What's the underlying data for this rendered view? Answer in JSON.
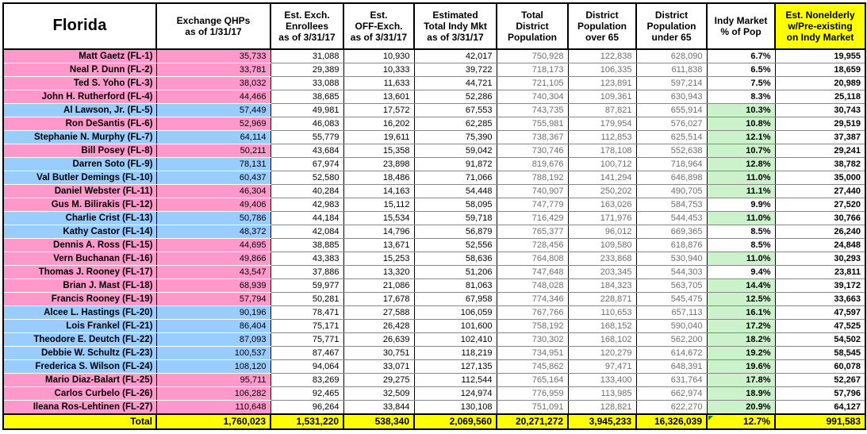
{
  "colors": {
    "republican_row": "#FF99CC",
    "democrat_row": "#99CCFF",
    "pct_highlight": "#CCF2CC",
    "total_row": "#FFFF00",
    "header_highlight": "#FFFF00",
    "flag_triangle": "#0a8a0a",
    "population_text": "#6e6e6e"
  },
  "table": {
    "columns": [
      {
        "key": "name",
        "lines": [
          "Florida"
        ]
      },
      {
        "key": "qhp",
        "lines": [
          "Exchange QHPs",
          "as of 1/31/17"
        ]
      },
      {
        "key": "enrollees",
        "lines": [
          "Est. Exch.",
          "Enrollees",
          "as of 3/31/17"
        ]
      },
      {
        "key": "off_exch",
        "lines": [
          "Est.",
          "OFF-Exch.",
          "as of 3/31/17"
        ]
      },
      {
        "key": "total_indy",
        "lines": [
          "Estimated",
          "Total Indy Mkt",
          "as of 3/31/17"
        ]
      },
      {
        "key": "total_pop",
        "lines": [
          "Total",
          "District",
          "Population"
        ]
      },
      {
        "key": "pop_over_65",
        "lines": [
          "District",
          "Population",
          "over 65"
        ]
      },
      {
        "key": "pop_under_65",
        "lines": [
          "District",
          "Population",
          "under 65"
        ]
      },
      {
        "key": "indy_pct",
        "lines": [
          "Indy Market",
          "% of Pop"
        ]
      },
      {
        "key": "nonelderly",
        "lines": [
          "Est. Nonelderly",
          "w/Pre-existing",
          "on Indy Market"
        ],
        "highlight": true
      }
    ],
    "rows": [
      {
        "district": "FL-1",
        "label": "Matt Gaetz (FL-1)",
        "party": "R",
        "qhp": "35,733",
        "enrollees": "31,088",
        "off_exch": "10,930",
        "total_indy": "42,017",
        "total_pop": "750,928",
        "pop_over_65": "122,838",
        "pop_under_65": "628,090",
        "indy_pct": "6.7%",
        "nonelderly": "19,955"
      },
      {
        "district": "FL-2",
        "label": "Neal P. Dunn (FL-2)",
        "party": "R",
        "qhp": "33,781",
        "enrollees": "29,389",
        "off_exch": "10,333",
        "total_indy": "39,722",
        "total_pop": "718,173",
        "pop_over_65": "106,335",
        "pop_under_65": "611,838",
        "indy_pct": "6.5%",
        "nonelderly": "18,659"
      },
      {
        "district": "FL-3",
        "label": "Ted S. Yoho (FL-3)",
        "party": "R",
        "qhp": "38,032",
        "enrollees": "33,088",
        "off_exch": "11,633",
        "total_indy": "44,721",
        "total_pop": "721,105",
        "pop_over_65": "123,891",
        "pop_under_65": "597,214",
        "indy_pct": "7.5%",
        "nonelderly": "20,989"
      },
      {
        "district": "FL-4",
        "label": "John H. Rutherford (FL-4)",
        "party": "R",
        "qhp": "44,466",
        "enrollees": "38,685",
        "off_exch": "13,601",
        "total_indy": "52,286",
        "total_pop": "740,304",
        "pop_over_65": "109,361",
        "pop_under_65": "630,943",
        "indy_pct": "8.3%",
        "nonelderly": "25,118"
      },
      {
        "district": "FL-5",
        "label": "Al Lawson, Jr. (FL-5)",
        "party": "D",
        "qhp": "57,449",
        "enrollees": "49,981",
        "off_exch": "17,572",
        "total_indy": "67,553",
        "total_pop": "743,735",
        "pop_over_65": "87,821",
        "pop_under_65": "655,914",
        "indy_pct": "10.3%",
        "nonelderly": "30,743"
      },
      {
        "district": "FL-6",
        "label": "Ron DeSantis (FL-6)",
        "party": "R",
        "qhp": "52,969",
        "enrollees": "46,083",
        "off_exch": "16,202",
        "total_indy": "62,285",
        "total_pop": "755,981",
        "pop_over_65": "179,954",
        "pop_under_65": "576,027",
        "indy_pct": "10.8%",
        "nonelderly": "29,519"
      },
      {
        "district": "FL-7",
        "label": "Stephanie N. Murphy (FL-7)",
        "party": "D",
        "qhp": "64,114",
        "enrollees": "55,779",
        "off_exch": "19,611",
        "total_indy": "75,390",
        "total_pop": "738,367",
        "pop_over_65": "112,853",
        "pop_under_65": "625,514",
        "indy_pct": "12.1%",
        "nonelderly": "37,387"
      },
      {
        "district": "FL-8",
        "label": "Bill Posey (FL-8)",
        "party": "R",
        "qhp": "50,211",
        "enrollees": "43,684",
        "off_exch": "15,358",
        "total_indy": "59,042",
        "total_pop": "730,746",
        "pop_over_65": "178,108",
        "pop_under_65": "552,638",
        "indy_pct": "10.7%",
        "nonelderly": "29,241"
      },
      {
        "district": "FL-9",
        "label": "Darren Soto (FL-9)",
        "party": "D",
        "qhp": "78,131",
        "enrollees": "67,974",
        "off_exch": "23,898",
        "total_indy": "91,872",
        "total_pop": "819,676",
        "pop_over_65": "100,712",
        "pop_under_65": "718,964",
        "indy_pct": "12.8%",
        "nonelderly": "38,782"
      },
      {
        "district": "FL-10",
        "label": "Val Butler Demings (FL-10)",
        "party": "D",
        "qhp": "60,437",
        "enrollees": "52,580",
        "off_exch": "18,486",
        "total_indy": "71,066",
        "total_pop": "788,192",
        "pop_over_65": "141,294",
        "pop_under_65": "646,898",
        "indy_pct": "11.0%",
        "nonelderly": "35,000"
      },
      {
        "district": "FL-11",
        "label": "Daniel Webster (FL-11)",
        "party": "R",
        "qhp": "46,304",
        "enrollees": "40,284",
        "off_exch": "14,163",
        "total_indy": "54,448",
        "total_pop": "740,907",
        "pop_over_65": "250,202",
        "pop_under_65": "490,705",
        "indy_pct": "11.1%",
        "nonelderly": "27,440"
      },
      {
        "district": "FL-12",
        "label": "Gus M. Bilirakis (FL-12)",
        "party": "R",
        "qhp": "49,406",
        "enrollees": "42,983",
        "off_exch": "15,112",
        "total_indy": "58,095",
        "total_pop": "747,779",
        "pop_over_65": "163,026",
        "pop_under_65": "584,753",
        "indy_pct": "9.9%",
        "nonelderly": "27,520"
      },
      {
        "district": "FL-13",
        "label": "Charlie Crist (FL-13)",
        "party": "D",
        "qhp": "50,786",
        "enrollees": "44,184",
        "off_exch": "15,534",
        "total_indy": "59,718",
        "total_pop": "716,429",
        "pop_over_65": "171,976",
        "pop_under_65": "544,453",
        "indy_pct": "11.0%",
        "nonelderly": "30,766"
      },
      {
        "district": "FL-14",
        "label": "Kathy Castor (FL-14)",
        "party": "D",
        "qhp": "48,372",
        "enrollees": "42,084",
        "off_exch": "14,796",
        "total_indy": "56,879",
        "total_pop": "765,377",
        "pop_over_65": "96,012",
        "pop_under_65": "669,365",
        "indy_pct": "8.5%",
        "nonelderly": "26,240"
      },
      {
        "district": "FL-15",
        "label": "Dennis A. Ross (FL-15)",
        "party": "R",
        "qhp": "44,695",
        "enrollees": "38,885",
        "off_exch": "13,671",
        "total_indy": "52,556",
        "total_pop": "728,456",
        "pop_over_65": "109,580",
        "pop_under_65": "618,876",
        "indy_pct": "8.5%",
        "nonelderly": "24,848"
      },
      {
        "district": "FL-16",
        "label": "Vern Buchanan (FL-16)",
        "party": "R",
        "qhp": "49,866",
        "enrollees": "43,383",
        "off_exch": "15,253",
        "total_indy": "58,636",
        "total_pop": "764,808",
        "pop_over_65": "233,868",
        "pop_under_65": "530,940",
        "indy_pct": "11.0%",
        "nonelderly": "30,293"
      },
      {
        "district": "FL-17",
        "label": "Thomas J. Rooney (FL-17)",
        "party": "R",
        "qhp": "43,547",
        "enrollees": "37,886",
        "off_exch": "13,320",
        "total_indy": "51,206",
        "total_pop": "747,648",
        "pop_over_65": "203,345",
        "pop_under_65": "544,303",
        "indy_pct": "9.4%",
        "nonelderly": "23,811"
      },
      {
        "district": "FL-18",
        "label": "Brian J. Mast (FL-18)",
        "party": "R",
        "qhp": "68,939",
        "enrollees": "59,977",
        "off_exch": "21,086",
        "total_indy": "81,063",
        "total_pop": "748,028",
        "pop_over_65": "184,323",
        "pop_under_65": "563,705",
        "indy_pct": "14.4%",
        "nonelderly": "39,172"
      },
      {
        "district": "FL-19",
        "label": "Francis Rooney (FL-19)",
        "party": "R",
        "qhp": "57,794",
        "enrollees": "50,281",
        "off_exch": "17,678",
        "total_indy": "67,958",
        "total_pop": "774,346",
        "pop_over_65": "228,871",
        "pop_under_65": "545,475",
        "indy_pct": "12.5%",
        "nonelderly": "33,663"
      },
      {
        "district": "FL-20",
        "label": "Alcee L. Hastings (FL-20)",
        "party": "D",
        "qhp": "90,196",
        "enrollees": "78,471",
        "off_exch": "27,588",
        "total_indy": "106,059",
        "total_pop": "767,766",
        "pop_over_65": "110,653",
        "pop_under_65": "657,113",
        "indy_pct": "16.1%",
        "nonelderly": "47,597"
      },
      {
        "district": "FL-21",
        "label": "Lois Frankel (FL-21)",
        "party": "D",
        "qhp": "86,404",
        "enrollees": "75,171",
        "off_exch": "26,428",
        "total_indy": "101,600",
        "total_pop": "758,192",
        "pop_over_65": "168,152",
        "pop_under_65": "590,040",
        "indy_pct": "17.2%",
        "nonelderly": "47,525"
      },
      {
        "district": "FL-22",
        "label": "Theodore E. Deutch (FL-22)",
        "party": "D",
        "qhp": "87,093",
        "enrollees": "75,771",
        "off_exch": "26,639",
        "total_indy": "102,410",
        "total_pop": "730,302",
        "pop_over_65": "168,102",
        "pop_under_65": "562,200",
        "indy_pct": "18.2%",
        "nonelderly": "54,502"
      },
      {
        "district": "FL-23",
        "label": "Debbie W. Schultz (FL-23)",
        "party": "D",
        "qhp": "100,537",
        "enrollees": "87,467",
        "off_exch": "30,751",
        "total_indy": "118,219",
        "total_pop": "734,951",
        "pop_over_65": "120,279",
        "pop_under_65": "614,672",
        "indy_pct": "19.2%",
        "nonelderly": "58,545"
      },
      {
        "district": "FL-24",
        "label": "Frederica S. Wilson (FL-24)",
        "party": "D",
        "qhp": "108,120",
        "enrollees": "94,064",
        "off_exch": "33,071",
        "total_indy": "127,135",
        "total_pop": "745,862",
        "pop_over_65": "97,471",
        "pop_under_65": "648,391",
        "indy_pct": "19.6%",
        "nonelderly": "60,078"
      },
      {
        "district": "FL-25",
        "label": "Mario Diaz-Balart (FL-25)",
        "party": "R",
        "qhp": "95,711",
        "enrollees": "83,269",
        "off_exch": "29,275",
        "total_indy": "112,544",
        "total_pop": "765,164",
        "pop_over_65": "133,400",
        "pop_under_65": "631,764",
        "indy_pct": "17.8%",
        "nonelderly": "52,267"
      },
      {
        "district": "FL-26",
        "label": "Carlos Curbelo (FL-26)",
        "party": "R",
        "qhp": "106,282",
        "enrollees": "92,465",
        "off_exch": "32,509",
        "total_indy": "124,974",
        "total_pop": "776,959",
        "pop_over_65": "113,985",
        "pop_under_65": "662,974",
        "indy_pct": "18.9%",
        "nonelderly": "57,796"
      },
      {
        "district": "FL-27",
        "label": "Ileana Ros-Lehtinen (FL-27)",
        "party": "R",
        "qhp": "110,648",
        "enrollees": "96,264",
        "off_exch": "33,844",
        "total_indy": "130,108",
        "total_pop": "751,091",
        "pop_over_65": "128,821",
        "pop_under_65": "622,270",
        "indy_pct": "20.9%",
        "nonelderly": "64,127"
      }
    ],
    "total": {
      "label": "Total",
      "qhp": "1,760,023",
      "enrollees": "1,531,220",
      "off_exch": "538,340",
      "total_indy": "2,069,560",
      "total_pop": "20,271,272",
      "pop_over_65": "3,945,233",
      "pop_under_65": "16,326,039",
      "indy_pct": "12.7%",
      "nonelderly": "991,583",
      "pct_cell_flag": true
    }
  }
}
